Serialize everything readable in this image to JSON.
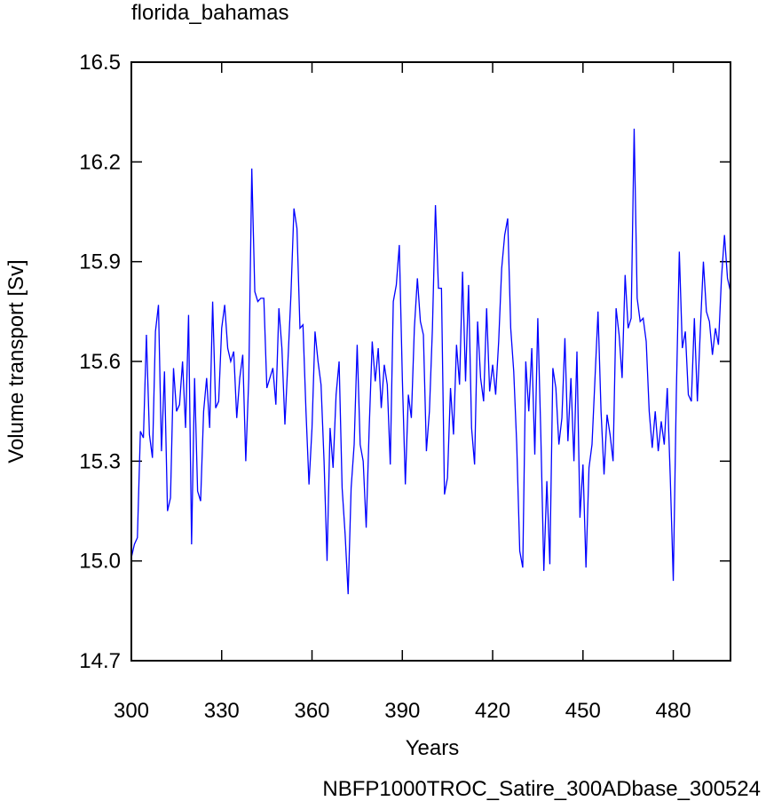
{
  "chart_data": {
    "type": "line",
    "title": "florida_bahamas",
    "xlabel": "Years",
    "ylabel": "Volume transport [Sv]",
    "footnote": "NBFP1000TROC_Satire_300ADbase_300524",
    "footnote_color": "#0000ff",
    "color": "#0000ff",
    "xlim": [
      300,
      499
    ],
    "ylim": [
      14.7,
      16.5
    ],
    "xticks": [
      300,
      330,
      360,
      390,
      420,
      450,
      480
    ],
    "yticks": [
      14.7,
      {
        "value": 15,
        "label": "15.0"
      },
      15.3,
      15.6,
      15.9,
      16.2,
      16.5
    ],
    "x": [
      300,
      301,
      302,
      303,
      304,
      305,
      306,
      307,
      308,
      309,
      310,
      311,
      312,
      313,
      314,
      315,
      316,
      317,
      318,
      319,
      320,
      321,
      322,
      323,
      324,
      325,
      326,
      327,
      328,
      329,
      330,
      331,
      332,
      333,
      334,
      335,
      336,
      337,
      338,
      339,
      340,
      341,
      342,
      343,
      344,
      345,
      346,
      347,
      348,
      349,
      350,
      351,
      352,
      353,
      354,
      355,
      356,
      357,
      358,
      359,
      360,
      361,
      362,
      363,
      364,
      365,
      366,
      367,
      368,
      369,
      370,
      371,
      372,
      373,
      374,
      375,
      376,
      377,
      378,
      379,
      380,
      381,
      382,
      383,
      384,
      385,
      386,
      387,
      388,
      389,
      390,
      391,
      392,
      393,
      394,
      395,
      396,
      397,
      398,
      399,
      400,
      401,
      402,
      403,
      404,
      405,
      406,
      407,
      408,
      409,
      410,
      411,
      412,
      413,
      414,
      415,
      416,
      417,
      418,
      419,
      420,
      421,
      422,
      423,
      424,
      425,
      426,
      427,
      428,
      429,
      430,
      431,
      432,
      433,
      434,
      435,
      436,
      437,
      438,
      439,
      440,
      441,
      442,
      443,
      444,
      445,
      446,
      447,
      448,
      449,
      450,
      451,
      452,
      453,
      454,
      455,
      456,
      457,
      458,
      459,
      460,
      461,
      462,
      463,
      464,
      465,
      466,
      467,
      468,
      469,
      470,
      471,
      472,
      473,
      474,
      475,
      476,
      477,
      478,
      479,
      480,
      481,
      482,
      483,
      484,
      485,
      486,
      487,
      488,
      489,
      490,
      491,
      492,
      493,
      494,
      495,
      496,
      497,
      498,
      499
    ],
    "values": [
      15.01,
      15.05,
      15.07,
      15.39,
      15.37,
      15.68,
      15.38,
      15.31,
      15.69,
      15.77,
      15.33,
      15.57,
      15.15,
      15.19,
      15.58,
      15.45,
      15.47,
      15.6,
      15.4,
      15.74,
      15.05,
      15.55,
      15.21,
      15.18,
      15.45,
      15.55,
      15.4,
      15.78,
      15.46,
      15.48,
      15.7,
      15.77,
      15.64,
      15.6,
      15.63,
      15.43,
      15.55,
      15.62,
      15.3,
      15.55,
      16.18,
      15.81,
      15.78,
      15.79,
      15.79,
      15.52,
      15.55,
      15.58,
      15.47,
      15.76,
      15.64,
      15.41,
      15.6,
      15.8,
      16.06,
      16.0,
      15.7,
      15.71,
      15.45,
      15.23,
      15.4,
      15.69,
      15.6,
      15.53,
      15.3,
      15.0,
      15.4,
      15.28,
      15.5,
      15.6,
      15.22,
      15.08,
      14.9,
      15.22,
      15.35,
      15.65,
      15.35,
      15.3,
      15.1,
      15.4,
      15.66,
      15.54,
      15.64,
      15.46,
      15.59,
      15.53,
      15.29,
      15.78,
      15.83,
      15.95,
      15.55,
      15.23,
      15.5,
      15.43,
      15.7,
      15.85,
      15.72,
      15.68,
      15.33,
      15.45,
      15.7,
      16.07,
      15.82,
      15.82,
      15.2,
      15.25,
      15.52,
      15.38,
      15.65,
      15.53,
      15.87,
      15.54,
      15.83,
      15.4,
      15.29,
      15.72,
      15.55,
      15.48,
      15.76,
      15.51,
      15.59,
      15.5,
      15.66,
      15.88,
      15.98,
      16.03,
      15.7,
      15.57,
      15.35,
      15.03,
      14.98,
      15.6,
      15.45,
      15.64,
      15.32,
      15.73,
      15.38,
      14.97,
      15.24,
      14.99,
      15.58,
      15.52,
      15.35,
      15.43,
      15.67,
      15.36,
      15.55,
      15.3,
      15.63,
      15.13,
      15.29,
      14.98,
      15.28,
      15.35,
      15.55,
      15.75,
      15.45,
      15.26,
      15.44,
      15.38,
      15.3,
      15.76,
      15.68,
      15.55,
      15.86,
      15.7,
      15.73,
      16.3,
      15.79,
      15.72,
      15.73,
      15.66,
      15.45,
      15.34,
      15.45,
      15.33,
      15.42,
      15.35,
      15.52,
      15.25,
      14.94,
      15.5,
      15.93,
      15.64,
      15.69,
      15.5,
      15.48,
      15.73,
      15.48,
      15.7,
      15.9,
      15.75,
      15.72,
      15.62,
      15.7,
      15.65,
      15.85,
      15.98,
      15.85,
      15.81
    ]
  }
}
